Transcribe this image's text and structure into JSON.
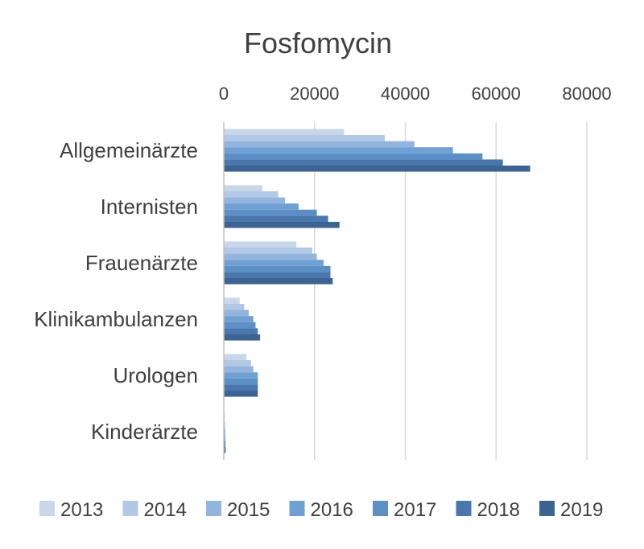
{
  "chart_data": {
    "type": "bar",
    "orientation": "horizontal",
    "title": "Fosfomycin",
    "categories": [
      "Allgemeinärzte",
      "Internisten",
      "Frauenärzte",
      "Klinikambulanzen",
      "Urologen",
      "Kinderärzte"
    ],
    "xlim": [
      0,
      80000
    ],
    "x_ticks": [
      "0",
      "20000",
      "40000",
      "60000",
      "80000"
    ],
    "x_axis_position": "top",
    "grid": true,
    "legend_position": "bottom",
    "series": [
      {
        "name": "2013",
        "color": "#c9d7ea",
        "values": [
          26500,
          8500,
          16000,
          3500,
          5000,
          200
        ]
      },
      {
        "name": "2014",
        "color": "#b1c8e6",
        "values": [
          35500,
          12000,
          19500,
          4500,
          6000,
          200
        ]
      },
      {
        "name": "2015",
        "color": "#93b5dd",
        "values": [
          42000,
          13500,
          20500,
          5500,
          6500,
          250
        ]
      },
      {
        "name": "2016",
        "color": "#6fa0d4",
        "values": [
          50500,
          16500,
          22000,
          6500,
          7500,
          300
        ]
      },
      {
        "name": "2017",
        "color": "#5b8fc5",
        "values": [
          57000,
          20500,
          23500,
          7000,
          7500,
          300
        ]
      },
      {
        "name": "2018",
        "color": "#4a78ad",
        "values": [
          61500,
          23000,
          23500,
          7500,
          7500,
          350
        ]
      },
      {
        "name": "2019",
        "color": "#3c6391",
        "values": [
          67500,
          25500,
          24000,
          8000,
          7500,
          400
        ]
      }
    ]
  }
}
